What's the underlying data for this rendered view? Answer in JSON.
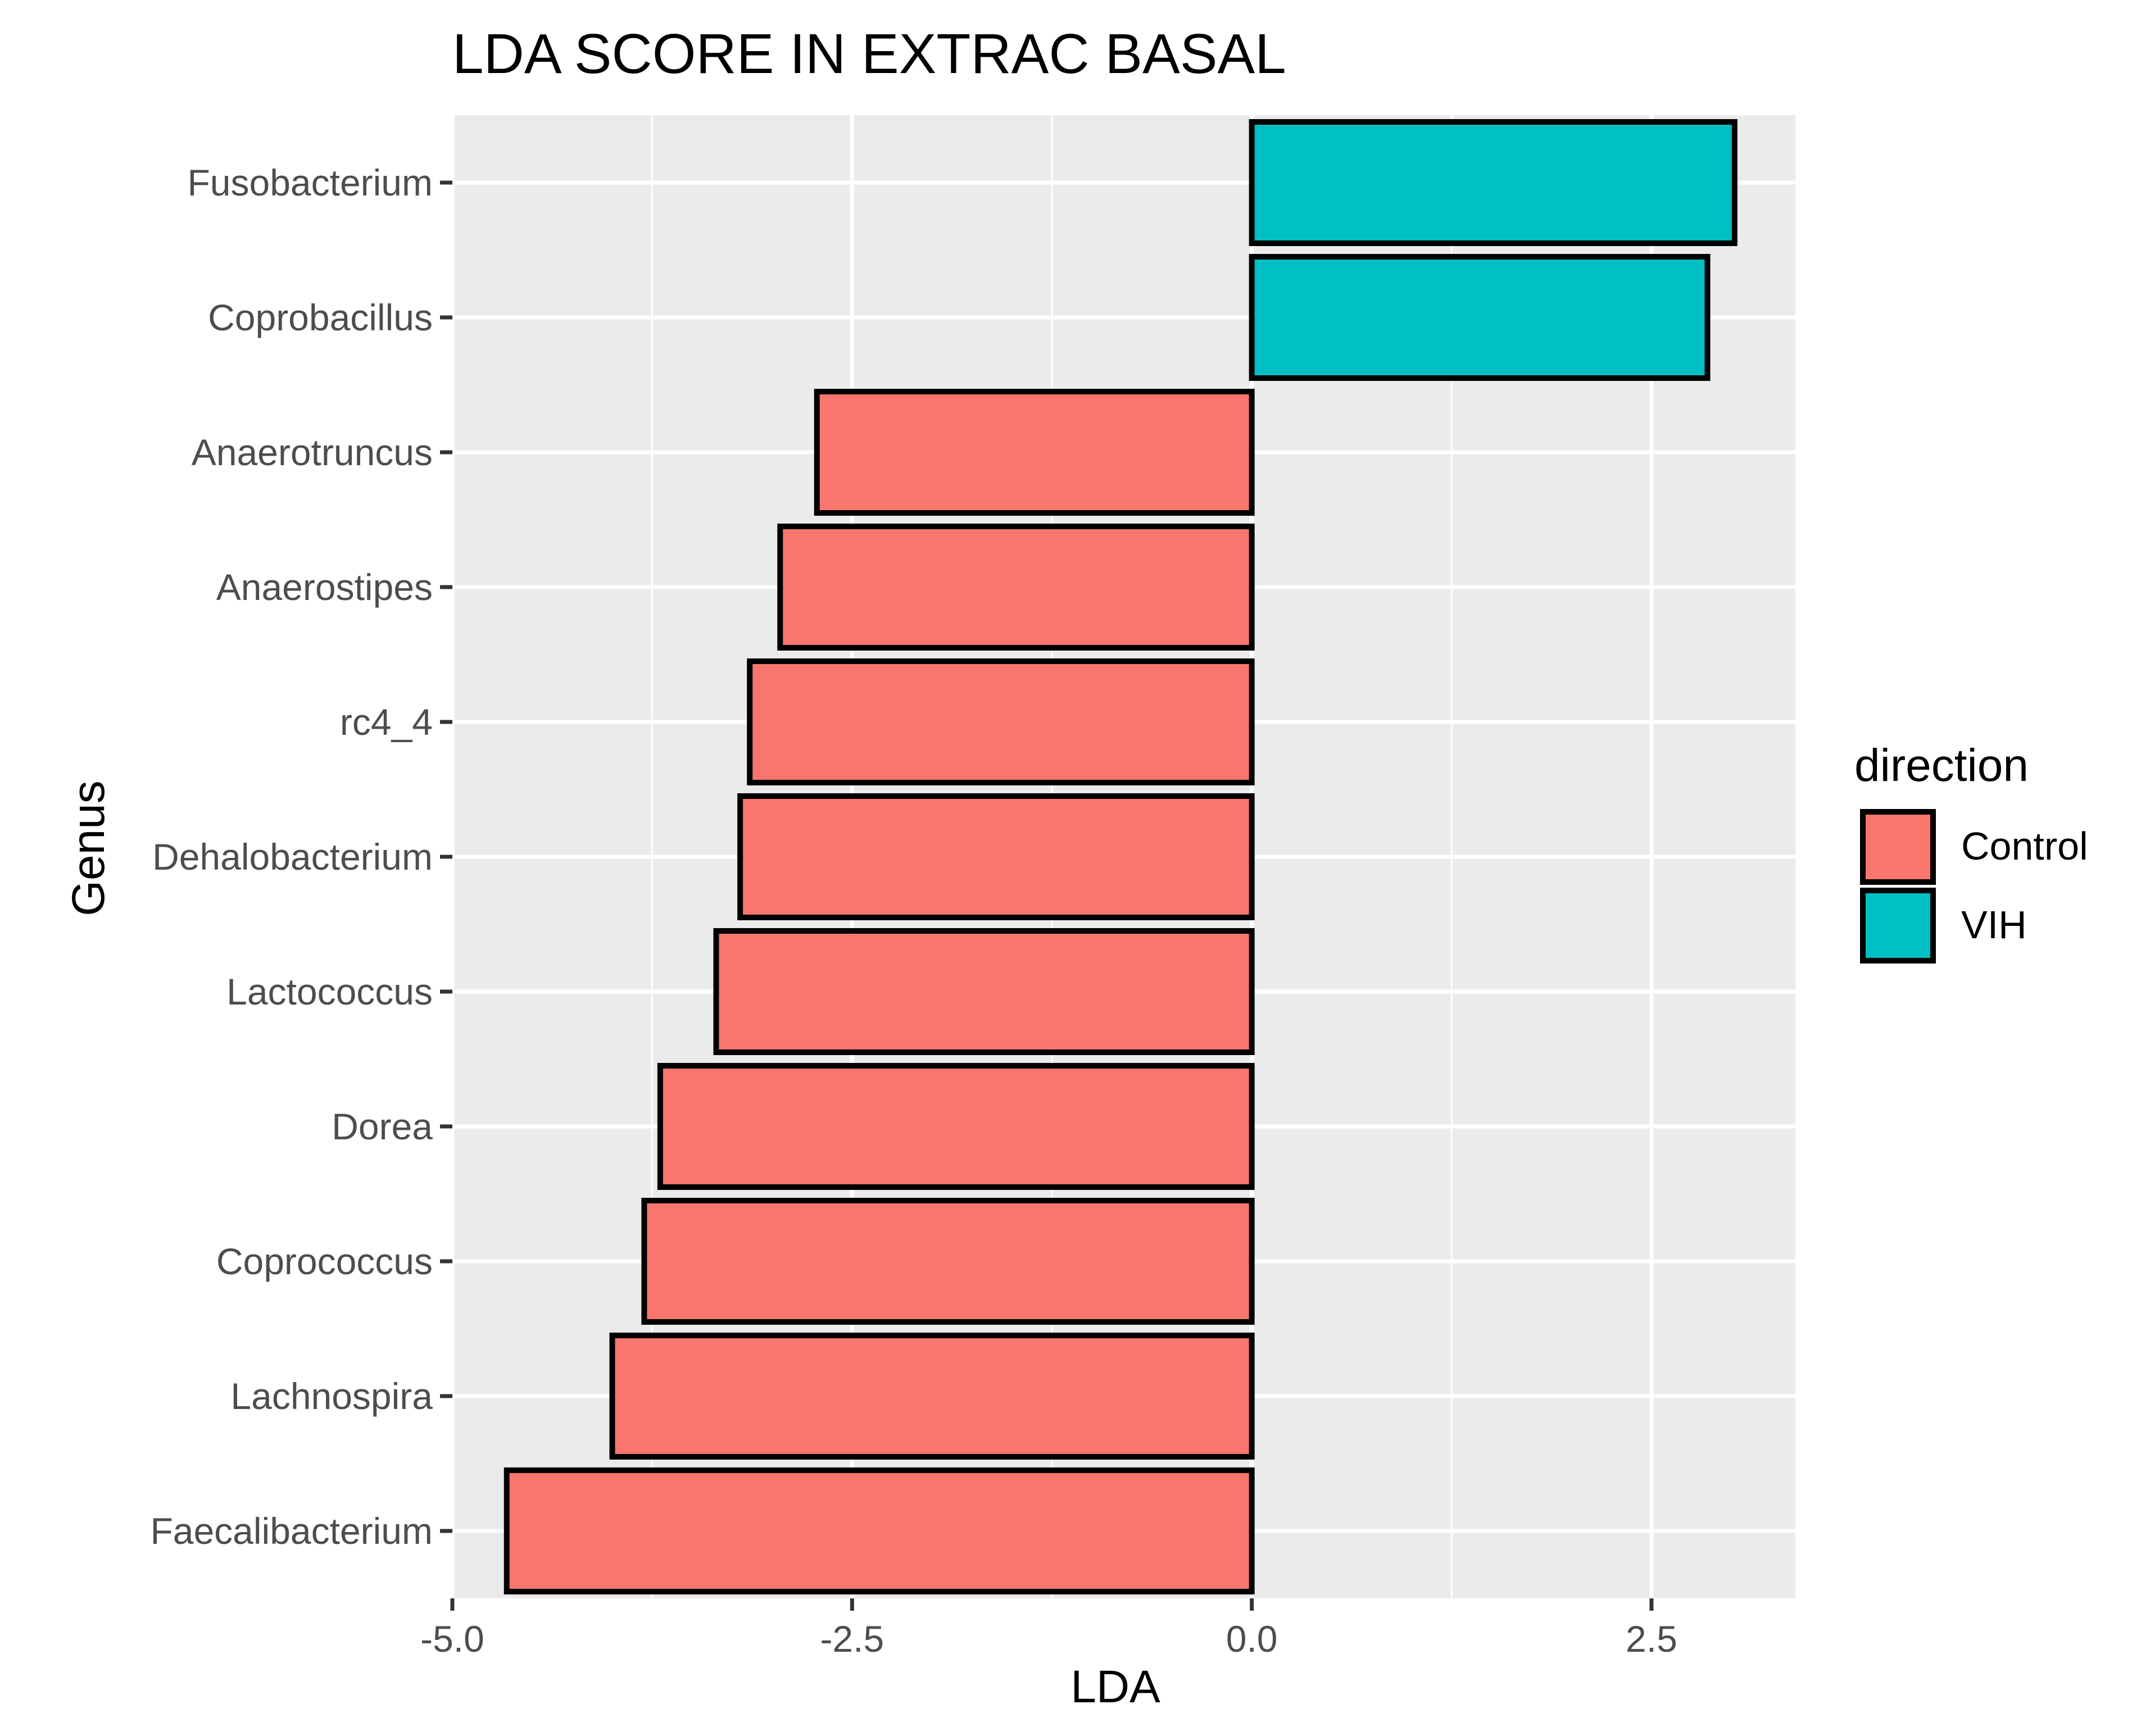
{
  "chart_data": {
    "type": "bar",
    "orientation": "horizontal",
    "title": "LDA SCORE IN EXTRAC BASAL",
    "xlabel": "LDA",
    "ylabel": "Genus",
    "xlim": [
      -5.0,
      3.4
    ],
    "x_ticks": [
      -5.0,
      -2.5,
      0.0,
      2.5
    ],
    "x_tick_labels": [
      "-5.0",
      "-2.5",
      "0.0",
      "2.5"
    ],
    "x_minor_ticks": [
      -3.75,
      -1.25,
      1.25
    ],
    "grid": true,
    "categories": [
      "Fusobacterium",
      "Coprobacillus",
      "Anaerotruncus",
      "Anaerostipes",
      "rc4_4",
      "Dehalobacterium",
      "Lactococcus",
      "Dorea",
      "Coprococcus",
      "Lachnospira",
      "Faecalibacterium"
    ],
    "values": [
      3.02,
      2.85,
      -2.72,
      -2.95,
      -3.14,
      -3.2,
      -3.35,
      -3.7,
      -3.8,
      -4.0,
      -4.66
    ],
    "groups": [
      "VIH",
      "VIH",
      "Control",
      "Control",
      "Control",
      "Control",
      "Control",
      "Control",
      "Control",
      "Control",
      "Control"
    ],
    "legend": {
      "title": "direction",
      "position": "right",
      "entries": [
        {
          "label": "Control",
          "color": "#F8766D"
        },
        {
          "label": "VIH",
          "color": "#00BFC4"
        }
      ]
    }
  },
  "colors": {
    "control": "#F8766D",
    "vih": "#00BFC4",
    "panel": "#EBEBEB",
    "grid": "#FFFFFF",
    "outline": "#000000"
  }
}
